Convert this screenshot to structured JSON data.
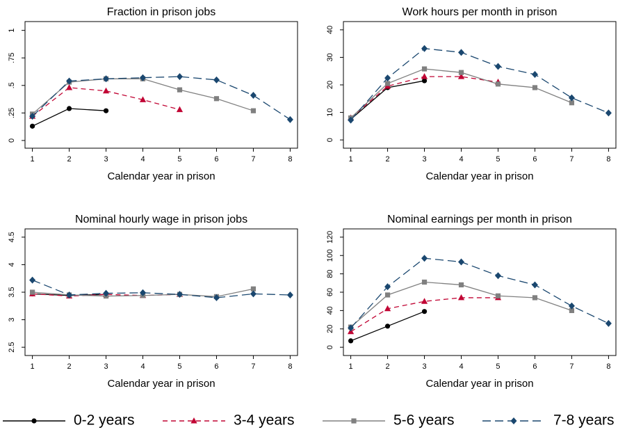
{
  "legend": [
    {
      "name": "0-2 years",
      "color": "#000000",
      "marker": "circle",
      "dash": "none"
    },
    {
      "name": "3-4 years",
      "color": "#c10534",
      "marker": "triangle",
      "dash": "7 5"
    },
    {
      "name": "5-6 years",
      "color": "#808080",
      "marker": "square",
      "dash": "none"
    },
    {
      "name": "7-8 years",
      "color": "#1a476f",
      "marker": "diamond",
      "dash": "12 6"
    }
  ],
  "chart_data": [
    {
      "type": "line",
      "title": "Fraction in prison jobs",
      "x_label": "Calendar year in prison",
      "x": [
        1,
        2,
        3,
        4,
        5,
        6,
        7,
        8
      ],
      "xlim": [
        0.8,
        8.2
      ],
      "xticks": [
        1,
        2,
        3,
        4,
        5,
        6,
        7,
        8
      ],
      "ylim": [
        -0.07,
        1.08
      ],
      "yticks": [
        0,
        {
          "value": 0.25,
          "label": ".25"
        },
        {
          "value": 0.5,
          "label": ".5"
        },
        {
          "value": 0.75,
          "label": ".75"
        },
        1
      ],
      "series": [
        {
          "color": "#000000",
          "marker": "circle",
          "dash": "none",
          "values": [
            0.13,
            0.29,
            0.27,
            null,
            null,
            null,
            null,
            null
          ]
        },
        {
          "color": "#c10534",
          "marker": "triangle",
          "dash": "7 5",
          "values": [
            0.22,
            0.48,
            0.45,
            0.37,
            0.28,
            null,
            null,
            null
          ]
        },
        {
          "color": "#808080",
          "marker": "square",
          "dash": "none",
          "values": [
            0.24,
            0.53,
            0.56,
            0.56,
            0.46,
            0.38,
            0.27,
            null
          ]
        },
        {
          "color": "#1a476f",
          "marker": "diamond",
          "dash": "12 6",
          "values": [
            0.22,
            0.54,
            0.56,
            0.57,
            0.58,
            0.55,
            0.41,
            0.19
          ]
        }
      ]
    },
    {
      "type": "line",
      "title": "Work hours per month in prison",
      "x_label": "Calendar year in prison",
      "x": [
        1,
        2,
        3,
        4,
        5,
        6,
        7,
        8
      ],
      "xlim": [
        0.8,
        8.2
      ],
      "xticks": [
        1,
        2,
        3,
        4,
        5,
        6,
        7,
        8
      ],
      "ylim": [
        -3,
        43
      ],
      "yticks": [
        0,
        10,
        20,
        30,
        40
      ],
      "series": [
        {
          "color": "#000000",
          "marker": "circle",
          "dash": "none",
          "values": [
            7.5,
            19,
            21.5,
            null,
            null,
            null,
            null,
            null
          ]
        },
        {
          "color": "#c10534",
          "marker": "triangle",
          "dash": "7 5",
          "values": [
            8,
            19.5,
            23,
            23,
            21,
            null,
            null,
            null
          ]
        },
        {
          "color": "#808080",
          "marker": "square",
          "dash": "none",
          "values": [
            8,
            20.5,
            25.8,
            24.5,
            20.3,
            19,
            13.5,
            null
          ]
        },
        {
          "color": "#1a476f",
          "marker": "diamond",
          "dash": "12 6",
          "values": [
            7.2,
            22.5,
            33.2,
            31.8,
            26.7,
            23.8,
            15.3,
            9.8
          ]
        }
      ]
    },
    {
      "type": "line",
      "title": "Nominal hourly wage in prison jobs",
      "x_label": "Calendar year in prison",
      "x": [
        1,
        2,
        3,
        4,
        5,
        6,
        7,
        8
      ],
      "xlim": [
        0.8,
        8.2
      ],
      "xticks": [
        1,
        2,
        3,
        4,
        5,
        6,
        7,
        8
      ],
      "ylim": [
        2.35,
        4.65
      ],
      "yticks": [
        2.5,
        3,
        3.5,
        4,
        4.5
      ],
      "series": [
        {
          "color": "#000000",
          "marker": "circle",
          "dash": "none",
          "values": [
            3.47,
            3.44,
            3.46,
            null,
            null,
            null,
            null,
            null
          ]
        },
        {
          "color": "#c10534",
          "marker": "triangle",
          "dash": "7 5",
          "values": [
            3.47,
            3.43,
            3.46,
            3.44,
            3.46,
            null,
            null,
            null
          ]
        },
        {
          "color": "#808080",
          "marker": "square",
          "dash": "none",
          "values": [
            3.5,
            3.45,
            3.43,
            3.44,
            3.46,
            3.42,
            3.56,
            null
          ]
        },
        {
          "color": "#1a476f",
          "marker": "diamond",
          "dash": "12 6",
          "values": [
            3.72,
            3.45,
            3.48,
            3.49,
            3.46,
            3.4,
            3.47,
            3.45
          ]
        }
      ]
    },
    {
      "type": "line",
      "title": "Nominal earnings per month in prison",
      "x_label": "Calendar year in prison",
      "x": [
        1,
        2,
        3,
        4,
        5,
        6,
        7,
        8
      ],
      "xlim": [
        0.8,
        8.2
      ],
      "xticks": [
        1,
        2,
        3,
        4,
        5,
        6,
        7,
        8
      ],
      "ylim": [
        -9,
        129
      ],
      "yticks": [
        0,
        20,
        40,
        60,
        80,
        100,
        120
      ],
      "series": [
        {
          "color": "#000000",
          "marker": "circle",
          "dash": "none",
          "values": [
            7,
            23,
            39,
            null,
            null,
            null,
            null,
            null
          ]
        },
        {
          "color": "#c10534",
          "marker": "triangle",
          "dash": "7 5",
          "values": [
            17,
            42,
            50,
            54,
            54,
            null,
            null,
            null
          ]
        },
        {
          "color": "#808080",
          "marker": "square",
          "dash": "none",
          "values": [
            22,
            57,
            71,
            68,
            56,
            54,
            40,
            null
          ]
        },
        {
          "color": "#1a476f",
          "marker": "diamond",
          "dash": "12 6",
          "values": [
            21,
            66,
            97,
            93,
            78,
            68,
            45,
            26
          ]
        }
      ]
    }
  ]
}
